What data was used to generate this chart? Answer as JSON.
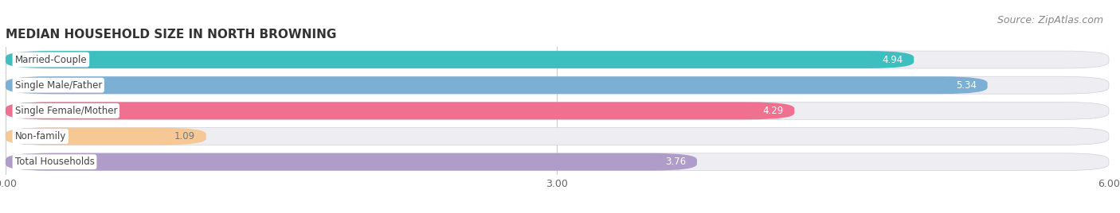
{
  "title": "MEDIAN HOUSEHOLD SIZE IN NORTH BROWNING",
  "source": "Source: ZipAtlas.com",
  "categories": [
    "Married-Couple",
    "Single Male/Father",
    "Single Female/Mother",
    "Non-family",
    "Total Households"
  ],
  "values": [
    4.94,
    5.34,
    4.29,
    1.09,
    3.76
  ],
  "bar_colors": [
    "#3dbfbf",
    "#7bafd4",
    "#f07090",
    "#f5c896",
    "#b09cc8"
  ],
  "value_text_colors": [
    "white",
    "white",
    "white",
    "#777777",
    "white"
  ],
  "xlim": [
    0,
    6.0
  ],
  "xticks": [
    0.0,
    3.0,
    6.0
  ],
  "xtick_labels": [
    "0.00",
    "3.00",
    "6.00"
  ],
  "bar_height": 0.68,
  "label_fontsize": 8.5,
  "value_fontsize": 8.5,
  "title_fontsize": 11,
  "source_fontsize": 9,
  "background_color": "#ffffff",
  "row_bg_color": "#ededf2",
  "gap_color": "#ffffff"
}
